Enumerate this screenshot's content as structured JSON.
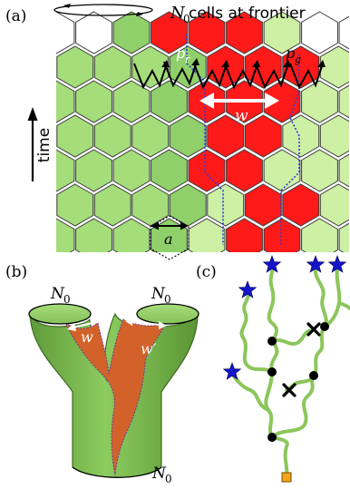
{
  "panels": {
    "a": {
      "label": "(a)",
      "title_symbol": "N",
      "title_sub": "0",
      "title_text": " cells at frontier",
      "time_label": "time",
      "pr_main": "p",
      "pr_sub": "r",
      "pg_main": "p",
      "pg_sub": "g",
      "w_label": "w",
      "a_label": "a"
    },
    "b": {
      "label": "(b)",
      "n0_left_main": "N",
      "n0_left_sub": "0",
      "n0_right_main": "N",
      "n0_right_sub": "0",
      "n0_bottom_main": "N",
      "n0_bottom_sub": "0",
      "w_label": "w",
      "wprime_label": "w′"
    },
    "c": {
      "label": "(c)"
    }
  },
  "colors": {
    "green_dark": "#8fd06a",
    "green_mid": "#a5dd7a",
    "green_light": "#cdf0a4",
    "red": "#ff1a1a",
    "red_dark": "#ee0000",
    "orange_sector": "#d2622a",
    "tree_green": "#8cc65c",
    "star_blue": "#1414c8",
    "root_orange": "#f2a51a",
    "boundary_blue": "#2a3bd8"
  }
}
